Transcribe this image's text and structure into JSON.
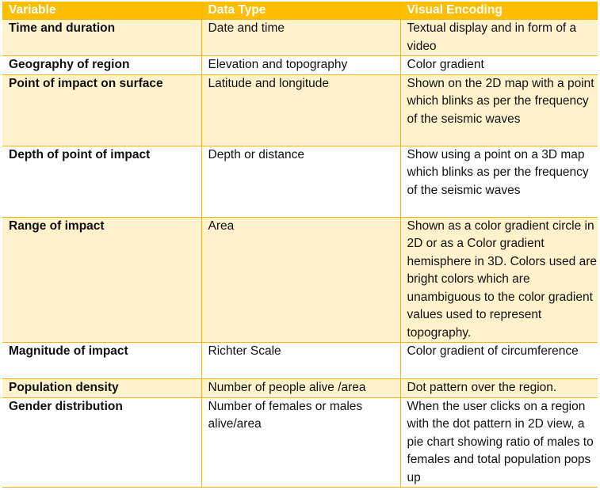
{
  "headers": [
    "Variable",
    "Data Type",
    "Visual Encoding"
  ],
  "rows": [
    {
      "variable": "Time and duration",
      "data_type": "Date and time",
      "encoding": "Textual display and in form of a video"
    },
    {
      "variable": "Geography of region",
      "data_type": "Elevation and topography",
      "encoding": "Color gradient"
    },
    {
      "variable": "Point of impact on surface",
      "data_type": "Latitude and longitude",
      "encoding": "Shown on the 2D map with a point which blinks as per the frequency of the seismic waves"
    },
    {
      "variable": "Depth of point of impact",
      "data_type": "Depth or distance",
      "encoding": "Show using a point on a 3D map which blinks as per the frequency of the seismic waves"
    },
    {
      "variable": "Range of impact",
      "data_type": "Area",
      "encoding": "Shown as a color gradient circle in 2D or as a Color gradient hemisphere in 3D. Colors used are bright colors which are unambiguous to the color gradient values used to represent topography."
    },
    {
      "variable": "Magnitude of impact",
      "data_type": "Richter Scale",
      "encoding": "Color gradient of circumference"
    },
    {
      "variable": "Population density",
      "data_type": "Number of people alive /area",
      "encoding": "Dot pattern over the region."
    },
    {
      "variable": "Gender distribution",
      "data_type": "Number of females or males alive/area",
      "encoding": "When the user clicks on a region with the dot pattern in 2D view, a pie chart showing ratio of males to females and total population pops up"
    }
  ],
  "colors": {
    "header_bg": "#ffbd00",
    "shade_bg": "#fff2cc",
    "border": "#f4b400"
  }
}
